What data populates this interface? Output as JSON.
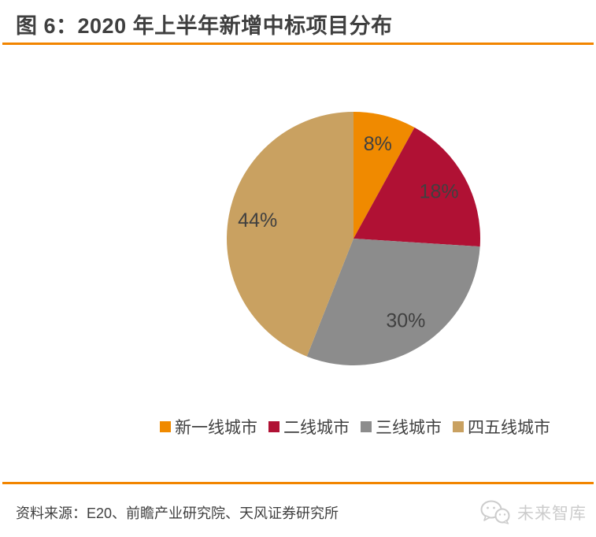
{
  "figure": {
    "title": "图 6：2020 年上半年新增中标项目分布",
    "source_label": "资料来源：E20、前瞻产业研究院、天风证券研究所",
    "brand_name": "未来智库",
    "accent_color": "#F28500",
    "title_color": "#3F3F3F",
    "brand_color": "#CCCCCC"
  },
  "chart_data": {
    "type": "pie",
    "title": "2020 年上半年新增中标项目分布",
    "categories": [
      "新一线城市",
      "二线城市",
      "三线城市",
      "四五线城市"
    ],
    "values": [
      8,
      18,
      30,
      44
    ],
    "labels": [
      "8%",
      "18%",
      "30%",
      "44%"
    ],
    "colors": [
      "#F08A00",
      "#B01134",
      "#8C8C8C",
      "#C9A161"
    ],
    "label_color": "#404040",
    "start_angle_deg": 0,
    "direction": "clockwise",
    "legend_position": "bottom"
  }
}
